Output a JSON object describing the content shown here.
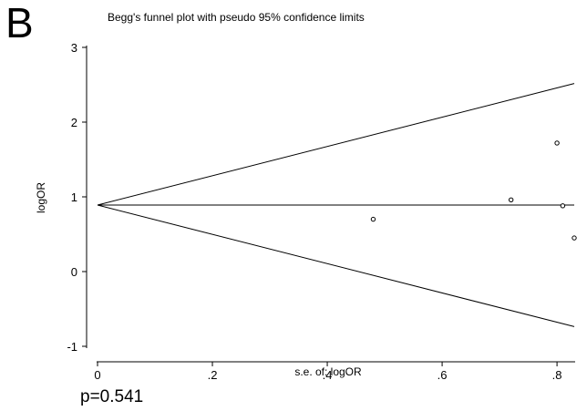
{
  "panel_label": "B",
  "p_value_text": "p=0.541",
  "chart_data": {
    "type": "scatter",
    "title": "Begg's funnel plot with pseudo 95% confidence limits",
    "xlabel": "s.e. of: logOR",
    "ylabel": "logOR",
    "xlim": [
      0,
      0.83
    ],
    "ylim": [
      -1,
      3
    ],
    "x_ticks": [
      {
        "value": 0,
        "label": "0"
      },
      {
        "value": 0.2,
        "label": ".2"
      },
      {
        "value": 0.4,
        "label": ".4"
      },
      {
        "value": 0.6,
        "label": ".6"
      },
      {
        "value": 0.8,
        "label": ".8"
      }
    ],
    "y_ticks": [
      {
        "value": -1,
        "label": "-1"
      },
      {
        "value": 0,
        "label": "0"
      },
      {
        "value": 1,
        "label": "1"
      },
      {
        "value": 2,
        "label": "2"
      },
      {
        "value": 3,
        "label": "3"
      }
    ],
    "grid": false,
    "pooled_estimate": 0.89,
    "points": [
      {
        "x": 0.48,
        "y": 0.7
      },
      {
        "x": 0.72,
        "y": 0.96
      },
      {
        "x": 0.8,
        "y": 1.72
      },
      {
        "x": 0.81,
        "y": 0.88
      },
      {
        "x": 0.83,
        "y": 0.45
      }
    ],
    "line_color": "#000000",
    "marker_color": "#000000"
  }
}
